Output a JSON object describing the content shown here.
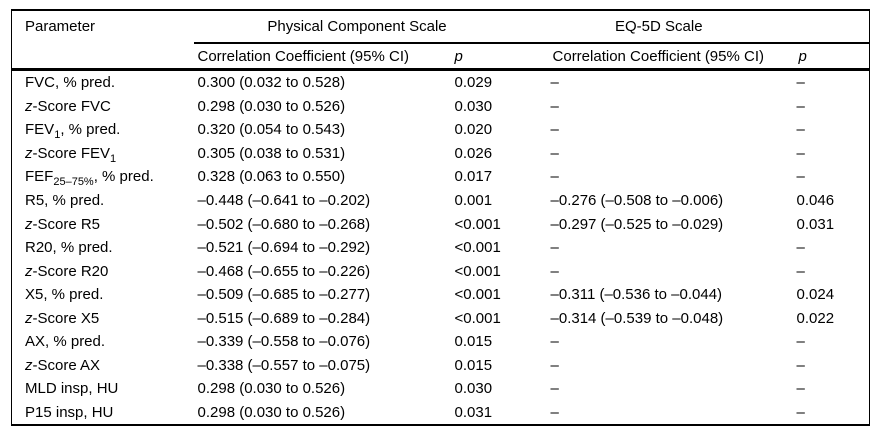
{
  "colors": {
    "text": "#000000",
    "background": "#ffffff",
    "rule": "#000000"
  },
  "table": {
    "headers": {
      "parameter": "Parameter",
      "groups": [
        {
          "label": "Physical Component Scale"
        },
        {
          "label": "EQ-5D Scale"
        }
      ],
      "sub": {
        "correlation": "Correlation Coefficient (95% CI)",
        "p": "p"
      }
    },
    "rows": [
      {
        "param": [
          {
            "t": "FVC, % pred."
          }
        ],
        "pcs_corr": "0.300 (0.032 to 0.528)",
        "pcs_p": "0.029",
        "eq_corr": "–",
        "eq_p": "–"
      },
      {
        "param": [
          {
            "i": "z"
          },
          {
            "t": "-Score FVC"
          }
        ],
        "pcs_corr": "0.298 (0.030 to 0.526)",
        "pcs_p": "0.030",
        "eq_corr": "–",
        "eq_p": "–"
      },
      {
        "param": [
          {
            "t": "FEV"
          },
          {
            "sub": "1"
          },
          {
            "t": ", % pred."
          }
        ],
        "pcs_corr": "0.320 (0.054 to 0.543)",
        "pcs_p": "0.020",
        "eq_corr": "–",
        "eq_p": "–"
      },
      {
        "param": [
          {
            "i": "z"
          },
          {
            "t": "-Score FEV"
          },
          {
            "sub": "1"
          }
        ],
        "pcs_corr": "0.305 (0.038 to 0.531)",
        "pcs_p": "0.026",
        "eq_corr": "–",
        "eq_p": "–"
      },
      {
        "param": [
          {
            "t": "FEF"
          },
          {
            "sub": "25–75%"
          },
          {
            "t": ", % pred."
          }
        ],
        "pcs_corr": "0.328 (0.063 to 0.550)",
        "pcs_p": "0.017",
        "eq_corr": "–",
        "eq_p": "–"
      },
      {
        "param": [
          {
            "t": "R5, % pred."
          }
        ],
        "pcs_corr": "–0.448 (–0.641 to –0.202)",
        "pcs_p": "0.001",
        "eq_corr": "–0.276 (–0.508 to –0.006)",
        "eq_p": "0.046"
      },
      {
        "param": [
          {
            "i": "z"
          },
          {
            "t": "-Score R5"
          }
        ],
        "pcs_corr": "–0.502 (–0.680 to –0.268)",
        "pcs_p": "<0.001",
        "eq_corr": "–0.297 (–0.525 to –0.029)",
        "eq_p": "0.031"
      },
      {
        "param": [
          {
            "t": "R20, % pred."
          }
        ],
        "pcs_corr": "–0.521 (–0.694 to –0.292)",
        "pcs_p": "<0.001",
        "eq_corr": "–",
        "eq_p": "–"
      },
      {
        "param": [
          {
            "i": "z"
          },
          {
            "t": "-Score R20"
          }
        ],
        "pcs_corr": "–0.468 (–0.655 to –0.226)",
        "pcs_p": "<0.001",
        "eq_corr": "–",
        "eq_p": "–"
      },
      {
        "param": [
          {
            "t": "X5, % pred."
          }
        ],
        "pcs_corr": "–0.509 (–0.685 to –0.277)",
        "pcs_p": "<0.001",
        "eq_corr": "–0.311 (–0.536 to –0.044)",
        "eq_p": "0.024"
      },
      {
        "param": [
          {
            "i": "z"
          },
          {
            "t": "-Score X5"
          }
        ],
        "pcs_corr": "–0.515 (–0.689 to –0.284)",
        "pcs_p": "<0.001",
        "eq_corr": "–0.314 (–0.539 to –0.048)",
        "eq_p": "0.022"
      },
      {
        "param": [
          {
            "t": "AX, % pred."
          }
        ],
        "pcs_corr": "–0.339 (–0.558 to –0.076)",
        "pcs_p": "0.015",
        "eq_corr": "–",
        "eq_p": "–"
      },
      {
        "param": [
          {
            "i": "z"
          },
          {
            "t": "-Score AX"
          }
        ],
        "pcs_corr": "–0.338 (–0.557 to –0.075)",
        "pcs_p": "0.015",
        "eq_corr": "–",
        "eq_p": "–"
      },
      {
        "param": [
          {
            "t": "MLD insp, HU"
          }
        ],
        "pcs_corr": "0.298 (0.030 to 0.526)",
        "pcs_p": "0.030",
        "eq_corr": "–",
        "eq_p": "–"
      },
      {
        "param": [
          {
            "t": "P15 insp, HU"
          }
        ],
        "pcs_corr": "0.298 (0.030 to 0.526)",
        "pcs_p": "0.031",
        "eq_corr": "–",
        "eq_p": "–"
      }
    ]
  }
}
